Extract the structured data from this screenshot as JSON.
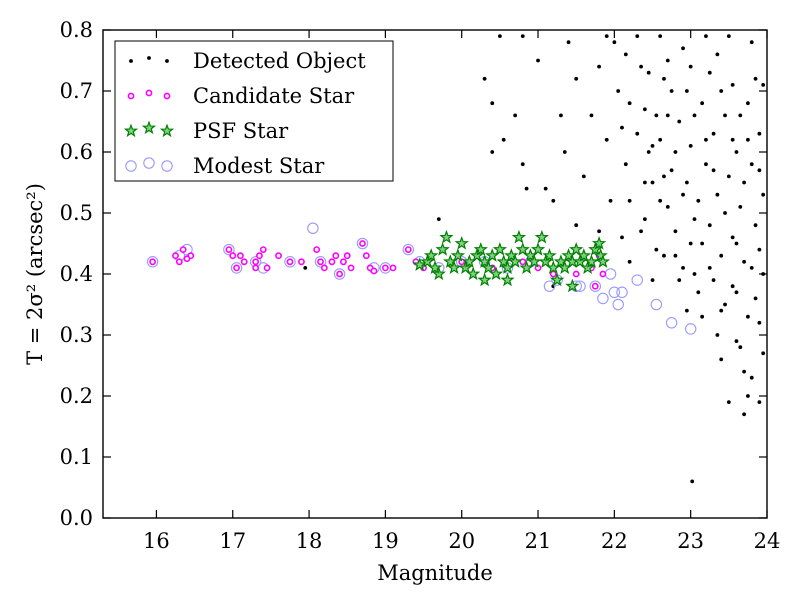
{
  "chart_data": {
    "type": "scatter",
    "xlabel": "Magnitude",
    "ylabel": "T = 2σ² (arcsec²)",
    "xlim": [
      15.3,
      24
    ],
    "ylim": [
      0,
      0.8
    ],
    "xticks": [
      "16",
      "17",
      "18",
      "19",
      "20",
      "21",
      "22",
      "23",
      "24"
    ],
    "yticks": [
      "0.0",
      "0.1",
      "0.2",
      "0.3",
      "0.4",
      "0.5",
      "0.6",
      "0.7",
      "0.8"
    ],
    "grid": false,
    "legend_position": "top-left",
    "colors": {
      "detected": "#000000",
      "candidate": "#ff00ff",
      "psf_fill": "#7fd17f",
      "psf_edge": "#008000",
      "modest": "#9999ff"
    },
    "series": [
      {
        "name": "Detected Object",
        "marker": "dot",
        "points": [
          [
            20.5,
            0.79
          ],
          [
            20.8,
            0.79
          ],
          [
            21.0,
            0.75
          ],
          [
            20.3,
            0.72
          ],
          [
            20.4,
            0.68
          ],
          [
            20.7,
            0.66
          ],
          [
            20.4,
            0.6
          ],
          [
            20.55,
            0.62
          ],
          [
            20.8,
            0.58
          ],
          [
            20.85,
            0.54
          ],
          [
            21.1,
            0.54
          ],
          [
            21.3,
            0.66
          ],
          [
            21.35,
            0.6
          ],
          [
            21.2,
            0.52
          ],
          [
            21.5,
            0.48
          ],
          [
            21.5,
            0.72
          ],
          [
            21.4,
            0.78
          ],
          [
            21.6,
            0.56
          ],
          [
            21.7,
            0.66
          ],
          [
            21.8,
            0.74
          ],
          [
            21.9,
            0.62
          ],
          [
            21.95,
            0.52
          ],
          [
            21.8,
            0.47
          ],
          [
            21.9,
            0.79
          ],
          [
            17.95,
            0.41
          ],
          [
            19.0,
            0.41
          ],
          [
            19.7,
            0.49
          ],
          [
            20.0,
            0.42
          ],
          [
            20.6,
            0.41
          ],
          [
            21.2,
            0.38
          ],
          [
            22.0,
            0.78
          ],
          [
            22.05,
            0.7
          ],
          [
            22.1,
            0.64
          ],
          [
            22.15,
            0.58
          ],
          [
            22.2,
            0.52
          ],
          [
            22.1,
            0.46
          ],
          [
            22.2,
            0.42
          ],
          [
            22.3,
            0.79
          ],
          [
            22.35,
            0.74
          ],
          [
            22.4,
            0.67
          ],
          [
            22.45,
            0.6
          ],
          [
            22.5,
            0.55
          ],
          [
            22.4,
            0.49
          ],
          [
            22.55,
            0.44
          ],
          [
            22.5,
            0.39
          ],
          [
            22.6,
            0.79
          ],
          [
            22.65,
            0.72
          ],
          [
            22.7,
            0.66
          ],
          [
            22.6,
            0.62
          ],
          [
            22.75,
            0.57
          ],
          [
            22.7,
            0.51
          ],
          [
            22.8,
            0.47
          ],
          [
            22.65,
            0.43
          ],
          [
            22.85,
            0.39
          ],
          [
            22.9,
            0.77
          ],
          [
            22.95,
            0.7
          ],
          [
            22.85,
            0.65
          ],
          [
            23.0,
            0.61
          ],
          [
            22.95,
            0.55
          ],
          [
            23.05,
            0.49
          ],
          [
            23.0,
            0.45
          ],
          [
            22.9,
            0.41
          ],
          [
            23.1,
            0.37
          ],
          [
            23.15,
            0.33
          ],
          [
            23.2,
            0.79
          ],
          [
            23.25,
            0.73
          ],
          [
            23.15,
            0.68
          ],
          [
            23.3,
            0.63
          ],
          [
            23.2,
            0.58
          ],
          [
            23.35,
            0.53
          ],
          [
            23.25,
            0.48
          ],
          [
            23.4,
            0.43
          ],
          [
            23.3,
            0.39
          ],
          [
            23.45,
            0.35
          ],
          [
            23.35,
            0.3
          ],
          [
            23.4,
            0.26
          ],
          [
            23.5,
            0.79
          ],
          [
            23.55,
            0.71
          ],
          [
            23.45,
            0.66
          ],
          [
            23.6,
            0.6
          ],
          [
            23.5,
            0.56
          ],
          [
            23.65,
            0.51
          ],
          [
            23.55,
            0.46
          ],
          [
            23.7,
            0.42
          ],
          [
            23.6,
            0.37
          ],
          [
            23.75,
            0.33
          ],
          [
            23.65,
            0.28
          ],
          [
            23.7,
            0.24
          ],
          [
            23.75,
            0.2
          ],
          [
            23.8,
            0.78
          ],
          [
            23.85,
            0.72
          ],
          [
            23.75,
            0.68
          ],
          [
            23.9,
            0.63
          ],
          [
            23.8,
            0.58
          ],
          [
            23.95,
            0.53
          ],
          [
            23.85,
            0.48
          ],
          [
            23.9,
            0.44
          ],
          [
            23.95,
            0.4
          ],
          [
            23.85,
            0.36
          ],
          [
            23.9,
            0.32
          ],
          [
            23.95,
            0.27
          ],
          [
            23.8,
            0.23
          ],
          [
            23.9,
            0.19
          ],
          [
            23.7,
            0.17
          ],
          [
            23.5,
            0.19
          ],
          [
            23.02,
            0.06
          ],
          [
            22.3,
            0.63
          ],
          [
            22.7,
            0.75
          ],
          [
            23.1,
            0.52
          ],
          [
            23.55,
            0.62
          ],
          [
            22.45,
            0.73
          ],
          [
            23.25,
            0.41
          ],
          [
            22.95,
            0.34
          ],
          [
            23.6,
            0.45
          ],
          [
            22.2,
            0.68
          ],
          [
            22.8,
            0.6
          ],
          [
            23.4,
            0.7
          ],
          [
            23.0,
            0.74
          ],
          [
            22.55,
            0.66
          ],
          [
            23.7,
            0.55
          ],
          [
            23.15,
            0.45
          ],
          [
            22.35,
            0.47
          ],
          [
            22.9,
            0.53
          ],
          [
            23.45,
            0.5
          ],
          [
            23.8,
            0.41
          ],
          [
            22.6,
            0.52
          ],
          [
            23.35,
            0.76
          ],
          [
            23.05,
            0.66
          ],
          [
            22.75,
            0.7
          ],
          [
            22.15,
            0.76
          ],
          [
            23.65,
            0.66
          ],
          [
            22.5,
            0.61
          ],
          [
            23.2,
            0.62
          ],
          [
            23.9,
            0.57
          ],
          [
            22.8,
            0.43
          ],
          [
            23.55,
            0.38
          ],
          [
            23.05,
            0.4
          ],
          [
            22.4,
            0.55
          ],
          [
            23.3,
            0.57
          ],
          [
            23.75,
            0.62
          ],
          [
            22.65,
            0.56
          ],
          [
            23.95,
            0.71
          ],
          [
            23.4,
            0.34
          ],
          [
            23.6,
            0.29
          ]
        ]
      },
      {
        "name": "Candidate Star",
        "marker": "circle-small",
        "points": [
          [
            15.95,
            0.42
          ],
          [
            16.25,
            0.43
          ],
          [
            16.3,
            0.42
          ],
          [
            16.35,
            0.44
          ],
          [
            16.45,
            0.43
          ],
          [
            16.4,
            0.425
          ],
          [
            16.95,
            0.44
          ],
          [
            17.0,
            0.43
          ],
          [
            17.1,
            0.43
          ],
          [
            17.05,
            0.41
          ],
          [
            17.15,
            0.42
          ],
          [
            17.3,
            0.42
          ],
          [
            17.35,
            0.43
          ],
          [
            17.4,
            0.44
          ],
          [
            17.3,
            0.41
          ],
          [
            17.45,
            0.41
          ],
          [
            17.6,
            0.43
          ],
          [
            17.75,
            0.42
          ],
          [
            17.9,
            0.42
          ],
          [
            18.1,
            0.44
          ],
          [
            18.15,
            0.42
          ],
          [
            18.2,
            0.41
          ],
          [
            18.3,
            0.42
          ],
          [
            18.35,
            0.43
          ],
          [
            18.45,
            0.42
          ],
          [
            18.5,
            0.43
          ],
          [
            18.55,
            0.41
          ],
          [
            18.4,
            0.4
          ],
          [
            18.7,
            0.45
          ],
          [
            18.75,
            0.43
          ],
          [
            18.8,
            0.41
          ],
          [
            18.85,
            0.405
          ],
          [
            19.0,
            0.41
          ],
          [
            19.1,
            0.41
          ],
          [
            19.3,
            0.44
          ],
          [
            19.4,
            0.42
          ],
          [
            19.5,
            0.41
          ],
          [
            20.0,
            0.42
          ],
          [
            20.4,
            0.41
          ],
          [
            20.8,
            0.42
          ],
          [
            21.0,
            0.41
          ],
          [
            21.2,
            0.4
          ],
          [
            21.5,
            0.4
          ],
          [
            21.7,
            0.41
          ],
          [
            21.8,
            0.43
          ],
          [
            21.85,
            0.4
          ],
          [
            21.75,
            0.38
          ]
        ]
      },
      {
        "name": "PSF Star",
        "marker": "star",
        "points": [
          [
            19.45,
            0.415
          ],
          [
            19.55,
            0.42
          ],
          [
            19.6,
            0.43
          ],
          [
            19.7,
            0.4
          ],
          [
            19.75,
            0.44
          ],
          [
            19.8,
            0.46
          ],
          [
            19.85,
            0.42
          ],
          [
            19.9,
            0.41
          ],
          [
            19.95,
            0.43
          ],
          [
            20.0,
            0.45
          ],
          [
            20.05,
            0.41
          ],
          [
            20.1,
            0.42
          ],
          [
            20.15,
            0.4
          ],
          [
            20.2,
            0.43
          ],
          [
            20.25,
            0.44
          ],
          [
            20.3,
            0.42
          ],
          [
            20.35,
            0.41
          ],
          [
            20.4,
            0.43
          ],
          [
            20.45,
            0.4
          ],
          [
            20.5,
            0.44
          ],
          [
            20.55,
            0.42
          ],
          [
            20.6,
            0.41
          ],
          [
            20.65,
            0.43
          ],
          [
            20.7,
            0.42
          ],
          [
            20.75,
            0.46
          ],
          [
            20.8,
            0.44
          ],
          [
            20.85,
            0.41
          ],
          [
            20.9,
            0.43
          ],
          [
            20.95,
            0.42
          ],
          [
            21.0,
            0.44
          ],
          [
            21.05,
            0.46
          ],
          [
            21.1,
            0.42
          ],
          [
            21.15,
            0.43
          ],
          [
            21.2,
            0.41
          ],
          [
            21.25,
            0.39
          ],
          [
            21.3,
            0.42
          ],
          [
            21.35,
            0.41
          ],
          [
            21.4,
            0.43
          ],
          [
            21.45,
            0.42
          ],
          [
            21.5,
            0.44
          ],
          [
            21.55,
            0.42
          ],
          [
            21.6,
            0.43
          ],
          [
            21.65,
            0.41
          ],
          [
            21.7,
            0.42
          ],
          [
            21.75,
            0.44
          ],
          [
            21.8,
            0.45
          ],
          [
            21.82,
            0.43
          ],
          [
            21.85,
            0.42
          ],
          [
            19.65,
            0.41
          ],
          [
            20.3,
            0.39
          ],
          [
            20.6,
            0.39
          ],
          [
            21.45,
            0.38
          ]
        ]
      },
      {
        "name": "Modest Star",
        "marker": "circle-large",
        "points": [
          [
            15.95,
            0.42
          ],
          [
            16.3,
            0.43
          ],
          [
            16.4,
            0.44
          ],
          [
            16.95,
            0.44
          ],
          [
            17.05,
            0.41
          ],
          [
            17.3,
            0.42
          ],
          [
            17.4,
            0.41
          ],
          [
            17.75,
            0.42
          ],
          [
            18.05,
            0.475
          ],
          [
            18.15,
            0.42
          ],
          [
            18.4,
            0.4
          ],
          [
            18.7,
            0.45
          ],
          [
            18.85,
            0.41
          ],
          [
            19.0,
            0.41
          ],
          [
            19.3,
            0.44
          ],
          [
            19.45,
            0.42
          ],
          [
            19.7,
            0.41
          ],
          [
            20.0,
            0.42
          ],
          [
            20.3,
            0.42
          ],
          [
            20.6,
            0.41
          ],
          [
            20.9,
            0.42
          ],
          [
            21.15,
            0.38
          ],
          [
            21.25,
            0.39
          ],
          [
            21.5,
            0.38
          ],
          [
            21.55,
            0.38
          ],
          [
            21.75,
            0.38
          ],
          [
            21.85,
            0.36
          ],
          [
            22.0,
            0.37
          ],
          [
            22.05,
            0.35
          ],
          [
            22.1,
            0.37
          ],
          [
            22.55,
            0.35
          ],
          [
            22.75,
            0.32
          ],
          [
            23.0,
            0.31
          ],
          [
            22.3,
            0.39
          ],
          [
            21.95,
            0.4
          ]
        ]
      }
    ]
  }
}
